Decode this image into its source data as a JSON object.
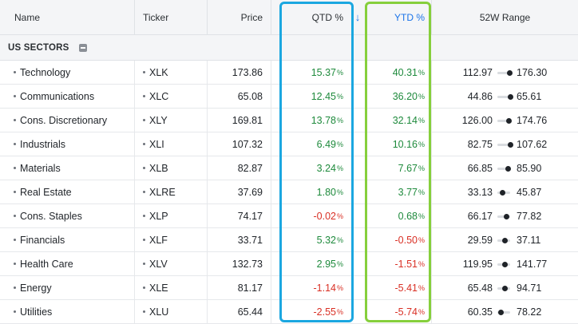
{
  "header": {
    "name": "Name",
    "ticker": "Ticker",
    "price": "Price",
    "qtd": "QTD %",
    "sort_arrow": "↓",
    "ytd": "YTD %",
    "range": "52W Range"
  },
  "section": {
    "label": "US SECTORS",
    "icon": "collapse-minus-icon"
  },
  "colors": {
    "positive": "#1e8a3c",
    "negative": "#d93025",
    "link_blue": "#1a73e8",
    "highlight_qtd": "#1ba7e0",
    "highlight_ytd": "#86cf3c"
  },
  "rows": [
    {
      "name": "Technology",
      "ticker": "XLK",
      "price": "173.86",
      "qtd": "15.37",
      "ytd": "40.31",
      "low": "112.97",
      "high": "176.30",
      "range_pos": 0.95
    },
    {
      "name": "Communications",
      "ticker": "XLC",
      "price": "65.08",
      "qtd": "12.45",
      "ytd": "36.20",
      "low": "44.86",
      "high": "65.61",
      "range_pos": 0.97
    },
    {
      "name": "Cons. Discretionary",
      "ticker": "XLY",
      "price": "169.81",
      "qtd": "13.78",
      "ytd": "32.14",
      "low": "126.00",
      "high": "174.76",
      "range_pos": 0.9
    },
    {
      "name": "Industrials",
      "ticker": "XLI",
      "price": "107.32",
      "qtd": "6.49",
      "ytd": "10.16",
      "low": "82.75",
      "high": "107.62",
      "range_pos": 0.99
    },
    {
      "name": "Materials",
      "ticker": "XLB",
      "price": "82.87",
      "qtd": "3.24",
      "ytd": "7.67",
      "low": "66.85",
      "high": "85.90",
      "range_pos": 0.84
    },
    {
      "name": "Real Estate",
      "ticker": "XLRE",
      "price": "37.69",
      "qtd": "1.80",
      "ytd": "3.77",
      "low": "33.13",
      "high": "45.87",
      "range_pos": 0.36
    },
    {
      "name": "Cons. Staples",
      "ticker": "XLP",
      "price": "74.17",
      "qtd": "-0.02",
      "ytd": "0.68",
      "low": "66.17",
      "high": "77.82",
      "range_pos": 0.69
    },
    {
      "name": "Financials",
      "ticker": "XLF",
      "price": "33.71",
      "qtd": "5.32",
      "ytd": "-0.50",
      "low": "29.59",
      "high": "37.11",
      "range_pos": 0.55
    },
    {
      "name": "Health Care",
      "ticker": "XLV",
      "price": "132.73",
      "qtd": "2.95",
      "ytd": "-1.51",
      "low": "119.95",
      "high": "141.77",
      "range_pos": 0.59
    },
    {
      "name": "Energy",
      "ticker": "XLE",
      "price": "81.17",
      "qtd": "-1.14",
      "ytd": "-5.41",
      "low": "65.48",
      "high": "94.71",
      "range_pos": 0.54
    },
    {
      "name": "Utilities",
      "ticker": "XLU",
      "price": "65.44",
      "qtd": "-2.55",
      "ytd": "-5.74",
      "low": "60.35",
      "high": "78.22",
      "range_pos": 0.28
    }
  ]
}
